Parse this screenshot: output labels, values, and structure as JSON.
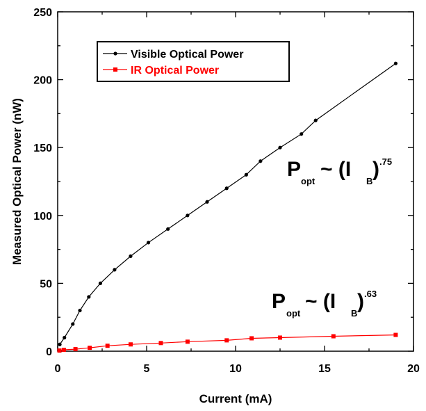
{
  "chart_data": {
    "type": "line",
    "xlabel": "Current (mA)",
    "ylabel": "Measured Optical Power (nW)",
    "xlim": [
      0,
      20
    ],
    "ylim": [
      0,
      250
    ],
    "xticks": [
      0,
      5,
      10,
      15,
      20
    ],
    "yticks": [
      0,
      50,
      100,
      150,
      200,
      250
    ],
    "grid": false,
    "legend_position": "top-left",
    "series": [
      {
        "name": "Visible Optical Power",
        "color": "#000000",
        "marker": "circle",
        "x": [
          0.12,
          0.38,
          0.85,
          1.25,
          1.75,
          2.4,
          3.2,
          4.1,
          5.1,
          6.2,
          7.3,
          8.4,
          9.5,
          10.6,
          11.4,
          12.5,
          13.7,
          14.5,
          19.0
        ],
        "y": [
          5,
          10,
          20,
          30,
          40,
          50,
          60,
          70,
          80,
          90,
          100,
          110,
          120,
          130,
          140,
          150,
          160,
          170,
          212
        ]
      },
      {
        "name": "IR Optical Power",
        "color": "#ff0000",
        "marker": "square",
        "x": [
          0.1,
          0.35,
          1.0,
          1.8,
          2.8,
          4.1,
          5.8,
          7.3,
          9.5,
          10.9,
          12.5,
          15.5,
          19.0
        ],
        "y": [
          0.5,
          1,
          1.5,
          2.5,
          4,
          5,
          6,
          7,
          8,
          9.5,
          10,
          11,
          12
        ]
      }
    ],
    "annotations": [
      {
        "base": "P",
        "sub": "opt",
        "mid": "~ (I",
        "sub2": "B",
        "close": ")",
        "exp": ".75"
      },
      {
        "base": "P",
        "sub": "opt",
        "mid": "~ (I",
        "sub2": "B",
        "close": ")",
        "exp": ".63"
      }
    ]
  }
}
